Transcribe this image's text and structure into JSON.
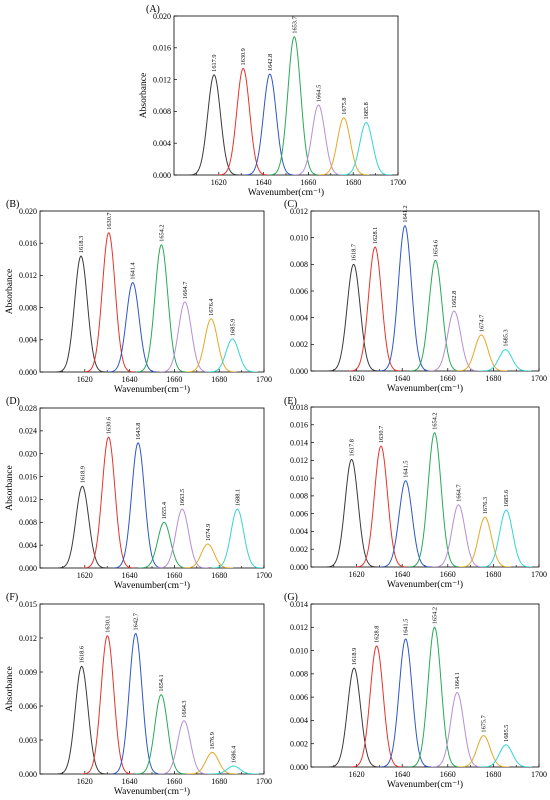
{
  "colors": [
    "#3a3a3a",
    "#e8332b",
    "#2f56c9",
    "#29a85a",
    "#b58fd6",
    "#e6a826",
    "#35d4d4"
  ],
  "chart_data": [
    {
      "panel": "(A)",
      "type": "line",
      "xlabel": "Wavenumber(cm⁻¹)",
      "ylabel": "Absorbance",
      "xlim": [
        1600,
        1700
      ],
      "ylim": [
        0,
        0.02
      ],
      "xticks": [
        "1620",
        "1640",
        "1660",
        "1680",
        "1700"
      ],
      "yticks": [
        "0.000",
        "0.004",
        "0.008",
        "0.012",
        "0.016",
        "0.020"
      ],
      "peaks": [
        {
          "center": 1617.9,
          "label": "1617.9",
          "height": 0.0126
        },
        {
          "center": 1630.9,
          "label": "1630.9",
          "height": 0.0134
        },
        {
          "center": 1642.8,
          "label": "1642.8",
          "height": 0.0127
        },
        {
          "center": 1653.7,
          "label": "1653.7",
          "height": 0.0174
        },
        {
          "center": 1664.5,
          "label": "1664.5",
          "height": 0.0088
        },
        {
          "center": 1675.8,
          "label": "1675.8",
          "height": 0.0072
        },
        {
          "center": 1685.8,
          "label": "1685.8",
          "height": 0.0066
        }
      ]
    },
    {
      "panel": "(B)",
      "type": "line",
      "xlabel": "Wavenumber(cm⁻¹)",
      "ylabel": "Absorbance",
      "xlim": [
        1600,
        1700
      ],
      "ylim": [
        0,
        0.02
      ],
      "xticks": [
        "1620",
        "1640",
        "1660",
        "1680",
        "1700"
      ],
      "yticks": [
        "0.000",
        "0.004",
        "0.008",
        "0.012",
        "0.016",
        "0.020"
      ],
      "peaks": [
        {
          "center": 1618.3,
          "label": "1618.3",
          "height": 0.0144
        },
        {
          "center": 1630.7,
          "label": "1630.7",
          "height": 0.0173
        },
        {
          "center": 1641.4,
          "label": "1641.4",
          "height": 0.0111
        },
        {
          "center": 1654.2,
          "label": "1654.2",
          "height": 0.0158
        },
        {
          "center": 1664.7,
          "label": "1664.7",
          "height": 0.0087
        },
        {
          "center": 1676.4,
          "label": "1676.4",
          "height": 0.0066
        },
        {
          "center": 1685.9,
          "label": "1685.9",
          "height": 0.0041
        }
      ]
    },
    {
      "panel": "(C)",
      "type": "line",
      "xlabel": "Wavenumber(cm⁻¹)",
      "ylabel": "",
      "xlim": [
        1600,
        1700
      ],
      "ylim": [
        0,
        0.012
      ],
      "xticks": [
        "1620",
        "1640",
        "1660",
        "1680",
        "1700"
      ],
      "yticks": [
        "0.000",
        "0.002",
        "0.004",
        "0.006",
        "0.008",
        "0.010",
        "0.012"
      ],
      "peaks": [
        {
          "center": 1618.7,
          "label": "1618.7",
          "height": 0.008
        },
        {
          "center": 1628.1,
          "label": "1628.1",
          "height": 0.0093
        },
        {
          "center": 1641.2,
          "label": "1641.2",
          "height": 0.0109
        },
        {
          "center": 1654.6,
          "label": "1654.6",
          "height": 0.0083
        },
        {
          "center": 1662.8,
          "label": "1662.8",
          "height": 0.0045
        },
        {
          "center": 1674.7,
          "label": "1674.7",
          "height": 0.0027
        },
        {
          "center": 1685.3,
          "label": "1685.3",
          "height": 0.0016
        }
      ]
    },
    {
      "panel": "(D)",
      "type": "line",
      "xlabel": "Wavenumber(cm⁻¹)",
      "ylabel": "Absorbance",
      "xlim": [
        1600,
        1700
      ],
      "ylim": [
        0,
        0.028
      ],
      "xticks": [
        "1620",
        "1640",
        "1660",
        "1680",
        "1700"
      ],
      "yticks": [
        "0.000",
        "0.004",
        "0.008",
        "0.012",
        "0.016",
        "0.020",
        "0.024",
        "0.028"
      ],
      "peaks": [
        {
          "center": 1618.9,
          "label": "1618.9",
          "height": 0.0143
        },
        {
          "center": 1630.6,
          "label": "1630.6",
          "height": 0.0229
        },
        {
          "center": 1643.8,
          "label": "1643.8",
          "height": 0.0219
        },
        {
          "center": 1655.4,
          "label": "1655.4",
          "height": 0.008
        },
        {
          "center": 1663.5,
          "label": "1663.5",
          "height": 0.0103
        },
        {
          "center": 1674.9,
          "label": "1674.9",
          "height": 0.0042
        },
        {
          "center": 1688.1,
          "label": "1688.1",
          "height": 0.0103
        }
      ]
    },
    {
      "panel": "(E)",
      "type": "line",
      "xlabel": "Wavenumber(cm⁻¹)",
      "ylabel": "",
      "xlim": [
        1600,
        1700
      ],
      "ylim": [
        0,
        0.018
      ],
      "xticks": [
        "1620",
        "1640",
        "1660",
        "1680",
        "1700"
      ],
      "yticks": [
        "0.000",
        "0.002",
        "0.004",
        "0.006",
        "0.008",
        "0.010",
        "0.012",
        "0.014",
        "0.016",
        "0.018"
      ],
      "peaks": [
        {
          "center": 1617.8,
          "label": "1617.8",
          "height": 0.0121
        },
        {
          "center": 1630.7,
          "label": "1630.7",
          "height": 0.0136
        },
        {
          "center": 1641.5,
          "label": "1641.5",
          "height": 0.0097
        },
        {
          "center": 1654.2,
          "label": "1654.2",
          "height": 0.0151
        },
        {
          "center": 1664.7,
          "label": "1664.7",
          "height": 0.007
        },
        {
          "center": 1676.3,
          "label": "1676.3",
          "height": 0.0056
        },
        {
          "center": 1685.6,
          "label": "1685.6",
          "height": 0.0064
        }
      ]
    },
    {
      "panel": "(F)",
      "type": "line",
      "xlabel": "Wavenumber(cm⁻¹)",
      "ylabel": "Absorbance",
      "xlim": [
        1600,
        1700
      ],
      "ylim": [
        0,
        0.015
      ],
      "xticks": [
        "1620",
        "1640",
        "1660",
        "1680",
        "1700"
      ],
      "yticks": [
        "0.000",
        "0.003",
        "0.006",
        "0.009",
        "0.012",
        "0.015"
      ],
      "peaks": [
        {
          "center": 1618.6,
          "label": "1618.6",
          "height": 0.0095
        },
        {
          "center": 1630.1,
          "label": "1630.1",
          "height": 0.0122
        },
        {
          "center": 1642.7,
          "label": "1642.7",
          "height": 0.0124
        },
        {
          "center": 1654.1,
          "label": "1654.1",
          "height": 0.007
        },
        {
          "center": 1664.3,
          "label": "1664.3",
          "height": 0.0047
        },
        {
          "center": 1676.9,
          "label": "1676.9",
          "height": 0.0019
        },
        {
          "center": 1686.4,
          "label": "1686.4",
          "height": 0.0007
        }
      ]
    },
    {
      "panel": "(G)",
      "type": "line",
      "xlabel": "Wavenumber(cm⁻¹)",
      "ylabel": "",
      "xlim": [
        1600,
        1700
      ],
      "ylim": [
        0,
        0.014
      ],
      "xticks": [
        "1620",
        "1640",
        "1660",
        "1680",
        "1700"
      ],
      "yticks": [
        "0.000",
        "0.002",
        "0.004",
        "0.006",
        "0.008",
        "0.010",
        "0.012",
        "0.014"
      ],
      "peaks": [
        {
          "center": 1618.9,
          "label": "1618.9",
          "height": 0.0085
        },
        {
          "center": 1628.8,
          "label": "1628.8",
          "height": 0.0104
        },
        {
          "center": 1641.5,
          "label": "1641.5",
          "height": 0.011
        },
        {
          "center": 1654.2,
          "label": "1654.2",
          "height": 0.012
        },
        {
          "center": 1664.1,
          "label": "1664.1",
          "height": 0.0064
        },
        {
          "center": 1675.7,
          "label": "1675.7",
          "height": 0.0027
        },
        {
          "center": 1685.5,
          "label": "1685.5",
          "height": 0.0019
        }
      ]
    }
  ]
}
